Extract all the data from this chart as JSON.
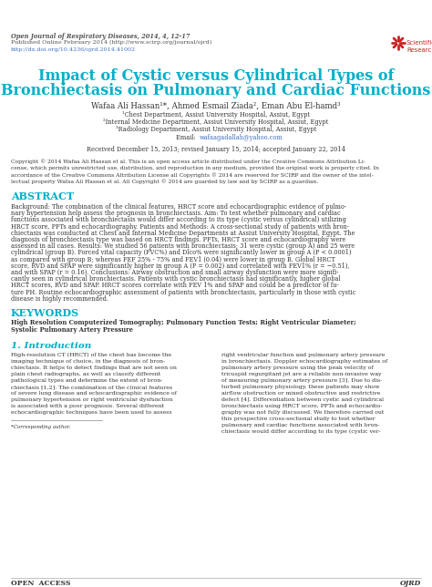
{
  "bg_color": "#ffffff",
  "header_line1": "Open Journal of Respiratory Diseases, 2014, 4, 12-17",
  "header_line2": "Published Online February 2014 (http://www.scirp.org/journal/ojrd)",
  "header_line3": "http://dx.doi.org/10.4236/ojrd.2014.41002",
  "title_line1": "Impact of Cystic versus Cylindrical Types of",
  "title_line2": "Bronchiectasis on Pulmonary and Cardiac Functions",
  "authors": "Wafaa Ali Hassan¹*, Ahmed Esmail Ziada², Eman Abu El-hamd³",
  "affil1": "¹Chest Department, Assiut University Hospital, Assiut, Egypt",
  "affil2": "²Internal Medicine Department, Assiut University Hospital, Assiut, Egypt",
  "affil3": "³Radiology Department, Assiut University Hospital, Assiut, Egypt",
  "email_label": "Email:  ",
  "email": "wafaagadallah@yahoo.com",
  "received": "Received December 15, 2013; revised January 15, 2014; accepted January 22, 2014",
  "copyright_text": "Copyright © 2014 Wafaa Ali Hassan et al. This is an open access article distributed under the Creative Commons Attribution Li-\ncense, which permits unrestricted use, distribution, and reproduction in any medium, provided the original work is properly cited. In\naccordance of the Creative Commons Attribution License all Copyrights © 2014 are reserved for SCIRP and the owner of the intel-\nlectual property Wafaa Ali Hassan et al. All Copyright © 2014 are guarded by law and by SCIRP as a guardian.",
  "abstract_title": "ABSTRACT",
  "abstract_text": "Background: The combination of the clinical features, HRCT score and echocardiographic evidence of pulmo-\nnary hypertension help assess the prognosis in bronchiectasis. Aim: To test whether pulmonary and cardiac\nfunctions associated with bronchiectasis would differ according to its type (cystic versus cylindrical) utilizing\nHRCT score, PFTs and echocardiography. Patients and Methods: A cross-sectional study of patients with bron-\nchiectasis was conducted at Chest and Internal Medicine Departments at Assiut University Hospital, Egypt. The\ndiagnosis of bronchiectasis type was based on HRCT findings. PFTs, HRCT score and echocardiography were\nassessed in all cases. Results: We studied 56 patients with bronchiectasis; 31 were cystic (group A) and 25 were\ncylindrical (group B). Forced vital capacity (FVC%) and Dlco% were significantly lower in group A (P < 0.0001)\nas compared with group B; whereas FEF 25% - 75% and FEV1 (0.04) were lower in group B. Global HRCT\nscore, RVD and SPAP were significantly higher in group A (P = 0.002) and correlated with FEV1% (r = −0.51),\nand with SPAP (r = 0.16). Conclusions: Airway obstruction and small airway dysfunction were more signifi-\ncantly seen in cylindrical bronchiectasis. Patients with cystic bronchiectasis had significantly, higher global\nHRCT scores, RVD and SPAP. HRCT scores correlate with FEV 1% and SPAP and could be a predictor of fu-\nture PH. Routine echocardiographic assessment of patients with bronchiectasis, particularly in those with cystic\ndisease is highly recommended.",
  "keywords_title": "KEYWORDS",
  "keywords_text": "High Resolution Computerized Tomography; Pulmonary Function Tests; Right Ventricular Diameter;\nSystolic Pulmonary Artery Pressure",
  "intro_title": "1. Introduction",
  "intro_col1": "High-resolution CT (HRCT) of the chest has become the\nimaging technique of choice, in the diagnosis of bron-\nchiectasis. It helps to detect findings that are not seen on\nplain chest radiographs, as well as classify different\npathological types and determine the extent of bron-\nchiectasis [1,2]. The combination of the clinical features\nof severe lung disease and echocardiographic evidence of\npulmonary hypertension or right ventricular dysfunction\nis associated with a poor prognosis. Several different\nechocardiographic techniques have been used to assess",
  "intro_col2": "right ventricular function and pulmonary artery pressure\nin bronchiectasis. Doppler echocardiography estimates of\npulmonary artery pressure using the peak velocity of\ntricuspid regurgitant jet are a reliable non-invasive way\nof measuring pulmonary artery pressure [3]. Due to dis-\nturbed pulmonary physiology, these patients may show\nairflow obstruction or mixed obstructive and restrictive\ndefect [4]. Differentiation between cystic and cylindrical\nbronchiectasis using HRCT score, PFTs and echocardio-\ngraphy was not fully discussed. We therefore carried out\nthis prospective cross-sectional study to test whether\npulmonary and cardiac functions associated with bron-\nchiectasis would differ according to its type (cystic ver-",
  "footer_left": "OPEN  ACCESS",
  "footer_right": "OJRD",
  "corr_author": "*Corresponding author.",
  "title_color": "#00b0c8",
  "abstract_keyword_color": "#00b0c8",
  "intro_color": "#00b0c8",
  "header_color": "#555555",
  "body_color": "#333333",
  "link_color": "#4070c0",
  "logo_color": "#cc2222"
}
